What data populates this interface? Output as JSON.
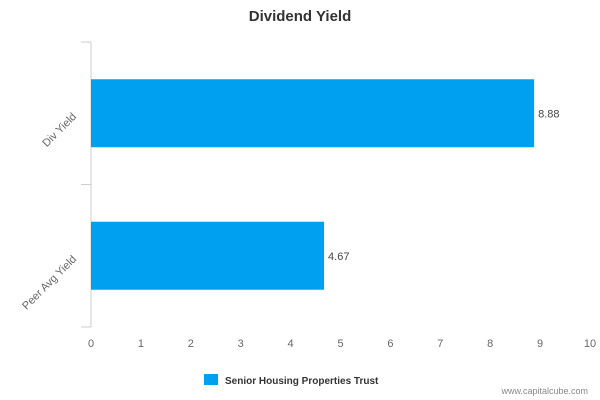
{
  "watermark": "www.capitalcube.com",
  "colors": {
    "bar": "#00a0f0",
    "axis": "#cccccc",
    "text": "#666666"
  },
  "chart_data": {
    "type": "bar",
    "orientation": "horizontal",
    "title": "Dividend Yield",
    "xlabel": "",
    "ylabel": "",
    "categories": [
      "Div Yield",
      "Peer Avg Yield"
    ],
    "series": [
      {
        "name": "Senior Housing Properties Trust",
        "values": [
          8.88,
          4.67
        ],
        "color": "#00a0f0"
      }
    ],
    "data_labels": [
      "8.88",
      "4.67"
    ],
    "xlim": [
      0,
      10
    ],
    "x_ticks": [
      "0",
      "1",
      "2",
      "3",
      "4",
      "5",
      "6",
      "7",
      "8",
      "9",
      "10"
    ],
    "grid": false,
    "legend_position": "bottom"
  }
}
